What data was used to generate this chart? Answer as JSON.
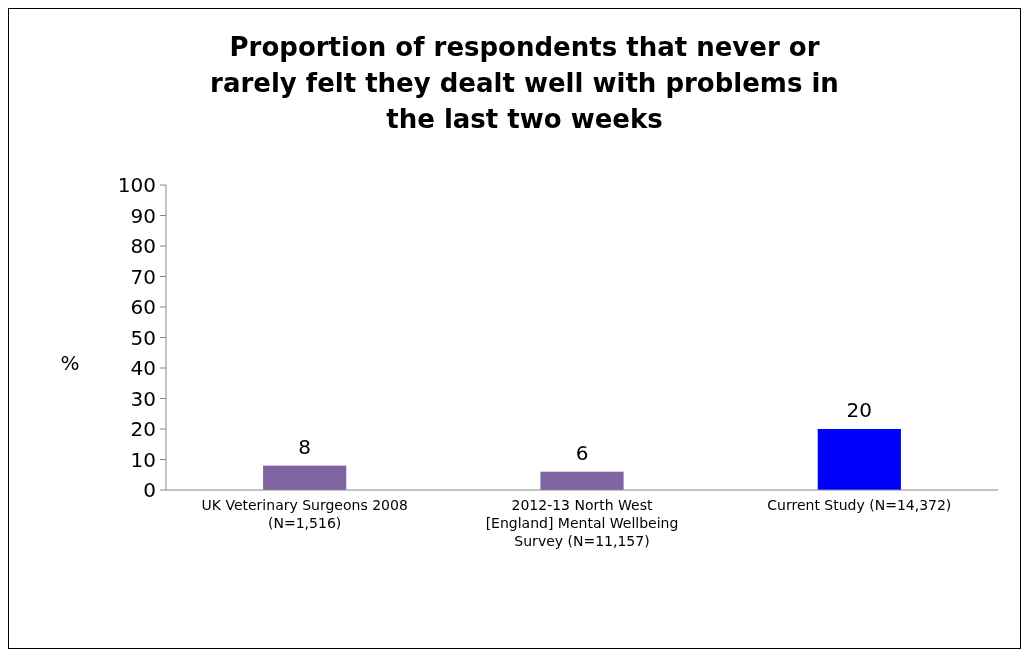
{
  "chart_data": {
    "type": "bar",
    "title": "Proportion of respondents that never or rarely felt they dealt well with problems in the last two weeks",
    "ylabel": "%",
    "categories": [
      "UK Veterinary Surgeons 2008 (N=1,516)",
      "2012-13 North West [England] Mental Wellbeing Survey (N=11,157)",
      "Current Study (N=14,372)"
    ],
    "values": [
      8,
      6,
      20
    ],
    "colors": [
      "#8064a2",
      "#8064a2",
      "#0000ff"
    ],
    "data_labels": true,
    "ylim": [
      0,
      100
    ],
    "yticks": [
      0,
      10,
      20,
      30,
      40,
      50,
      60,
      70,
      80,
      90,
      100
    ],
    "grid": false
  }
}
